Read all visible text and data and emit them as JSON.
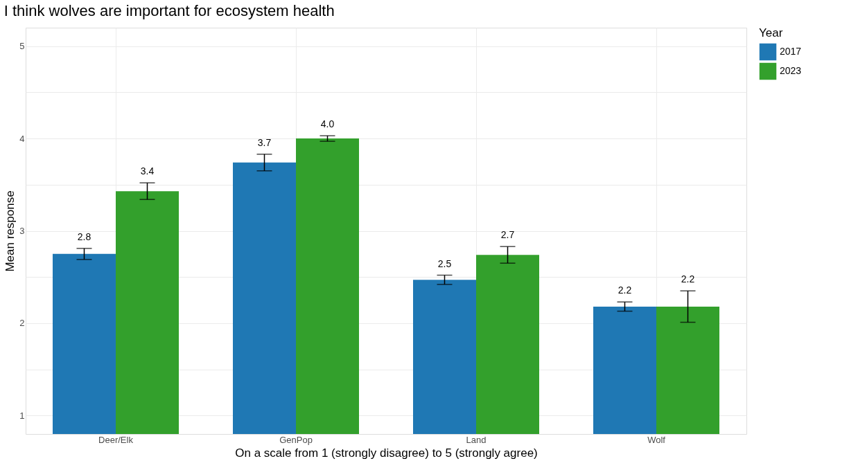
{
  "chart_data": {
    "type": "bar",
    "title": "I think wolves are important for ecosystem health",
    "xlabel": "On a scale from 1 (strongly disagree) to 5 (strongly agree)",
    "ylabel": "Mean response",
    "legend_title": "Year",
    "categories": [
      "Deer/Elk",
      "GenPop",
      "Land",
      "Wolf"
    ],
    "series": [
      {
        "name": "2017",
        "color": "#1f78b4",
        "values": [
          2.75,
          3.74,
          2.47,
          2.18
        ],
        "errors": [
          0.06,
          0.09,
          0.05,
          0.05
        ],
        "value_labels": [
          "2.8",
          "3.7",
          "2.5",
          "2.2"
        ]
      },
      {
        "name": "2023",
        "color": "#33a02c",
        "values": [
          3.43,
          4.0,
          2.74,
          2.18
        ],
        "errors": [
          0.09,
          0.03,
          0.09,
          0.17
        ],
        "value_labels": [
          "3.4",
          "4.0",
          "2.7",
          "2.2"
        ]
      }
    ],
    "ylim": [
      0.8,
      5.2
    ],
    "yticks": [
      1,
      {
        "value": 1.5,
        "label": null
      },
      2,
      {
        "value": 2.5,
        "label": null
      },
      3,
      {
        "value": 3.5,
        "label": null
      },
      4,
      {
        "value": 4.5,
        "label": null
      },
      5
    ],
    "grid": true,
    "legend": "right"
  }
}
